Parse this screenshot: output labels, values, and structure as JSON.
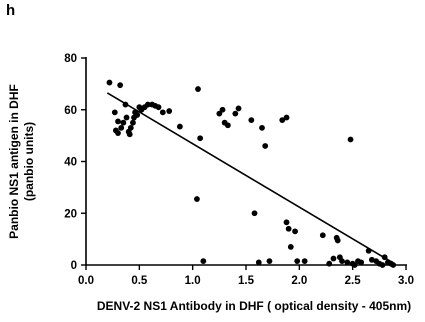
{
  "panel_label": "h",
  "chart_data": {
    "type": "scatter",
    "title": "",
    "xlabel": "DENV-2 NS1 Antibody in DHF ( optical density - 405nm)",
    "ylabel_lines": [
      "Panbio NS1 antigen in DHF",
      "(panbio units)"
    ],
    "xlim": [
      0.0,
      3.0
    ],
    "ylim": [
      0,
      80
    ],
    "x_ticks": [
      "0.0",
      "0.5",
      "1.0",
      "1.5",
      "2.0",
      "2.5",
      "3.0"
    ],
    "y_ticks": [
      "0",
      "20",
      "40",
      "60",
      "80"
    ],
    "grid": false,
    "legend": "none",
    "series": [
      {
        "points": [
          [
            0.22,
            70.5
          ],
          [
            0.32,
            69.5
          ],
          [
            0.27,
            59
          ],
          [
            0.3,
            55.5
          ],
          [
            0.28,
            52
          ],
          [
            0.3,
            51
          ],
          [
            0.33,
            53
          ],
          [
            0.35,
            55
          ],
          [
            0.37,
            62
          ],
          [
            0.38,
            57
          ],
          [
            0.4,
            51.5
          ],
          [
            0.41,
            50.5
          ],
          [
            0.42,
            53
          ],
          [
            0.44,
            55
          ],
          [
            0.45,
            57
          ],
          [
            0.46,
            59
          ],
          [
            0.48,
            58
          ],
          [
            0.5,
            61
          ],
          [
            0.52,
            60
          ],
          [
            0.55,
            61
          ],
          [
            0.58,
            62
          ],
          [
            0.62,
            62
          ],
          [
            0.65,
            61.5
          ],
          [
            0.68,
            61
          ],
          [
            0.72,
            59
          ],
          [
            0.78,
            59.5
          ],
          [
            0.88,
            53.5
          ],
          [
            1.05,
            68
          ],
          [
            1.04,
            25.5
          ],
          [
            1.07,
            49
          ],
          [
            1.1,
            1.5
          ],
          [
            1.25,
            58.5
          ],
          [
            1.28,
            60
          ],
          [
            1.3,
            55
          ],
          [
            1.33,
            54
          ],
          [
            1.4,
            58.5
          ],
          [
            1.43,
            60.5
          ],
          [
            1.55,
            56
          ],
          [
            1.62,
            1
          ],
          [
            1.65,
            53
          ],
          [
            1.68,
            46
          ],
          [
            1.72,
            1.5
          ],
          [
            1.58,
            20
          ],
          [
            1.84,
            56
          ],
          [
            1.88,
            57
          ],
          [
            1.88,
            16.5
          ],
          [
            1.9,
            14
          ],
          [
            1.92,
            7
          ],
          [
            1.96,
            13
          ],
          [
            1.98,
            1.5
          ],
          [
            2.05,
            1.5
          ],
          [
            2.22,
            11.5
          ],
          [
            2.28,
            0.5
          ],
          [
            2.32,
            2.5
          ],
          [
            2.35,
            10.5
          ],
          [
            2.36,
            9.5
          ],
          [
            2.38,
            3
          ],
          [
            2.4,
            1.5
          ],
          [
            2.45,
            1
          ],
          [
            2.48,
            48.5
          ],
          [
            2.5,
            0.5
          ],
          [
            2.52,
            0
          ],
          [
            2.55,
            1.5
          ],
          [
            2.58,
            1
          ],
          [
            2.65,
            5.5
          ],
          [
            2.68,
            2
          ],
          [
            2.72,
            1.5
          ],
          [
            2.75,
            0.5
          ],
          [
            2.78,
            0
          ],
          [
            2.8,
            3
          ],
          [
            2.83,
            1
          ],
          [
            2.86,
            0.5
          ],
          [
            2.88,
            0
          ]
        ]
      }
    ],
    "regression_line": {
      "x": [
        0.2,
        2.9
      ],
      "y": [
        66.5,
        0.3
      ]
    }
  }
}
